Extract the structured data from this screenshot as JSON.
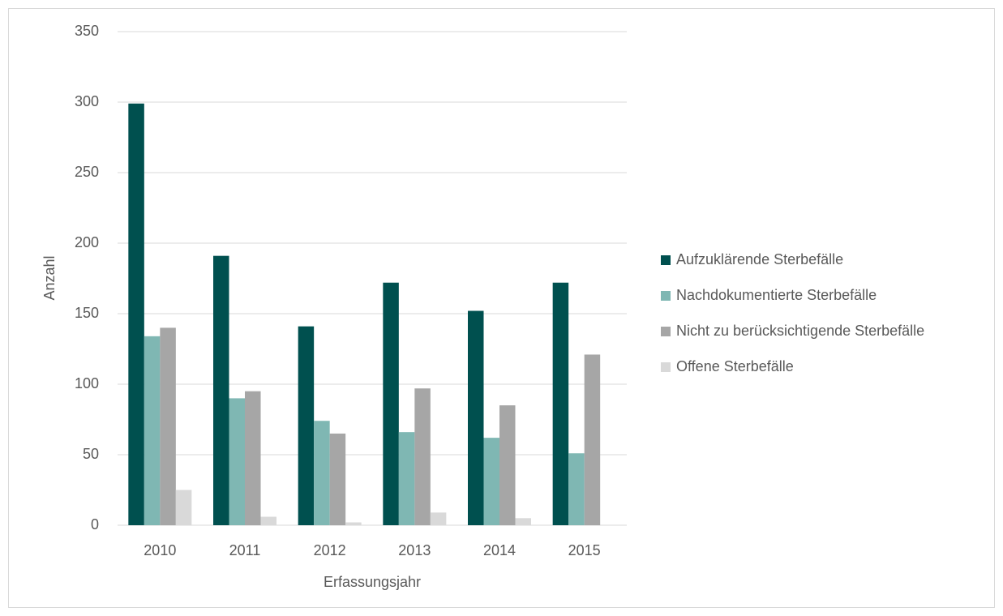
{
  "chart_data": {
    "type": "bar",
    "x_label": "Erfassungsjahr",
    "y_label": "Anzahl",
    "categories": [
      "2010",
      "2011",
      "2012",
      "2013",
      "2014",
      "2015"
    ],
    "series": [
      {
        "name": "Aufzuklärende Sterbefälle",
        "color": "#00504f",
        "values": [
          299,
          191,
          141,
          172,
          152,
          172
        ]
      },
      {
        "name": "Nachdokumentierte Sterbefälle",
        "color": "#7fb7b3",
        "values": [
          134,
          90,
          74,
          66,
          62,
          51
        ]
      },
      {
        "name": "Nicht zu berücksichtigende Sterbefälle",
        "color": "#a6a6a6",
        "values": [
          140,
          95,
          65,
          97,
          85,
          121
        ]
      },
      {
        "name": "Offene Sterbefälle",
        "color": "#d9d9d9",
        "values": [
          25,
          6,
          2,
          9,
          5,
          null
        ]
      }
    ],
    "ylim": [
      0,
      350
    ],
    "yticks": [
      0,
      50,
      100,
      150,
      200,
      250,
      300,
      350
    ],
    "grid": true,
    "legend": "right"
  }
}
